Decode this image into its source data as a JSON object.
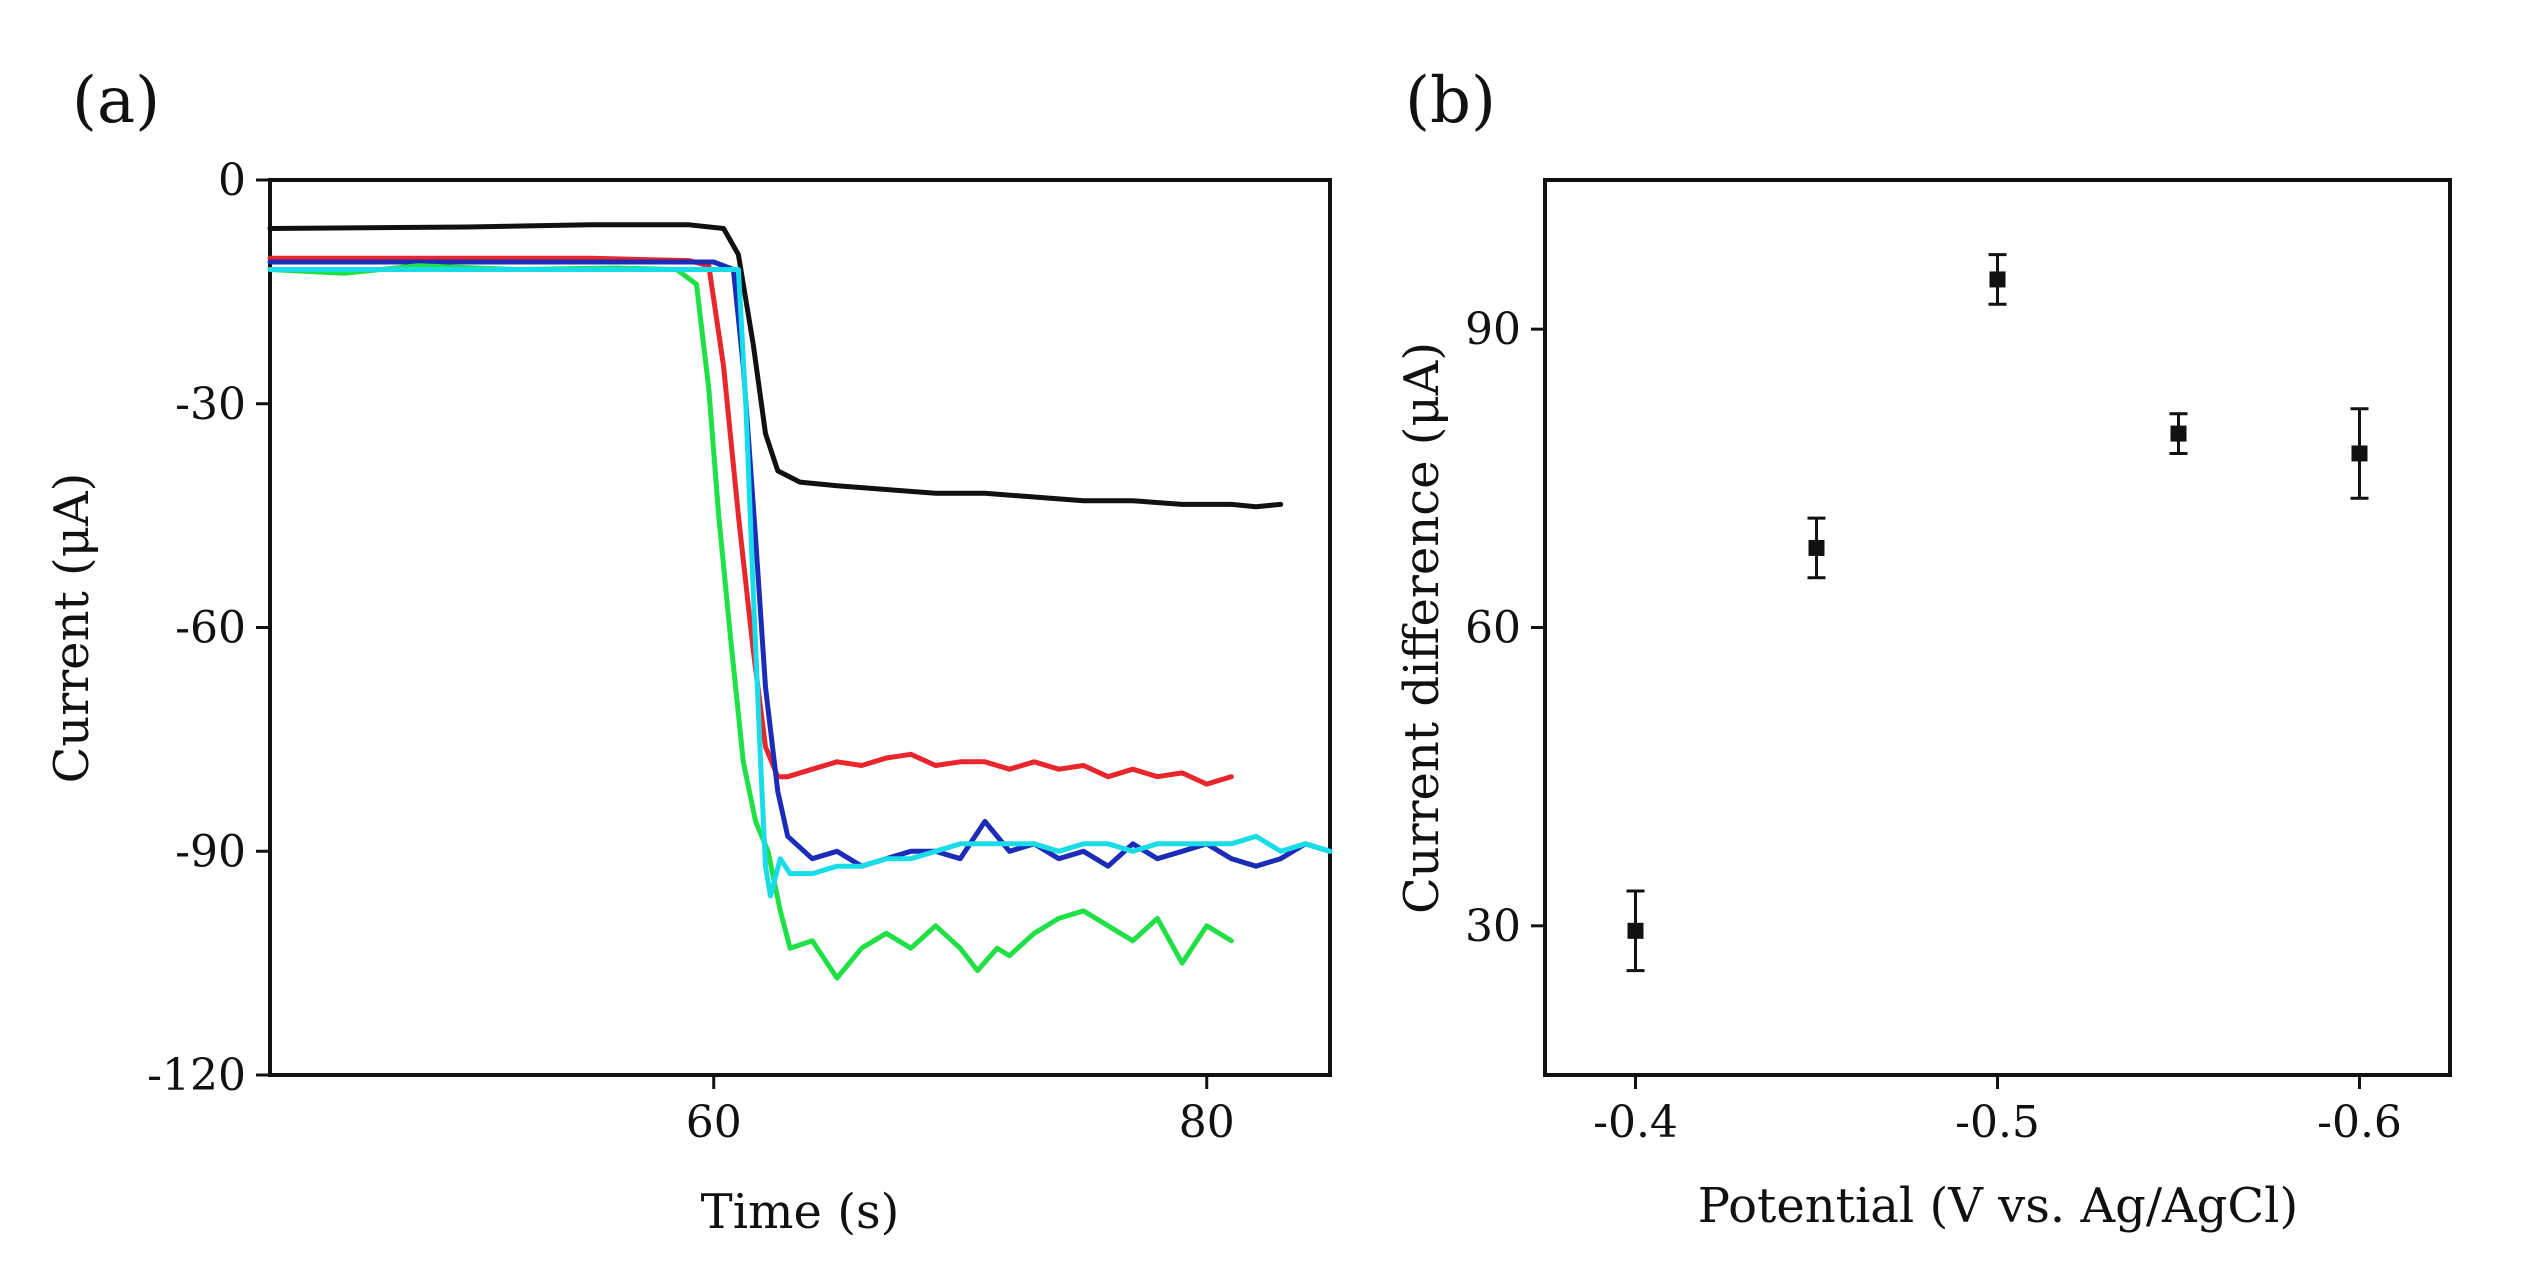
{
  "figure": {
    "panels": [
      "(a)",
      "(b)"
    ]
  },
  "chart_data": [
    {
      "panel": "(a)",
      "type": "line",
      "title": "",
      "xlabel": "Time (s)",
      "ylabel": "Current (μA)",
      "xlim": [
        42,
        85
      ],
      "ylim": [
        -120,
        0
      ],
      "xticks": [
        60,
        80
      ],
      "yticks": [
        0,
        -30,
        -60,
        -90,
        -120
      ],
      "grid": false,
      "series": [
        {
          "name": "black",
          "color": "#111111",
          "points": [
            [
              42,
              -6.5
            ],
            [
              50,
              -6.3
            ],
            [
              55,
              -6.0
            ],
            [
              59,
              -6.0
            ],
            [
              60.4,
              -6.5
            ],
            [
              61,
              -10
            ],
            [
              61.6,
              -22
            ],
            [
              62.1,
              -34
            ],
            [
              62.6,
              -39
            ],
            [
              63.5,
              -40.5
            ],
            [
              65,
              -41
            ],
            [
              67,
              -41.5
            ],
            [
              69,
              -42
            ],
            [
              71,
              -42
            ],
            [
              73,
              -42.5
            ],
            [
              75,
              -43
            ],
            [
              77,
              -43
            ],
            [
              79,
              -43.5
            ],
            [
              81,
              -43.5
            ],
            [
              82,
              -43.8
            ],
            [
              83,
              -43.5
            ]
          ]
        },
        {
          "name": "red",
          "color": "#e8262c",
          "points": [
            [
              42,
              -10.5
            ],
            [
              50,
              -10.5
            ],
            [
              55,
              -10.5
            ],
            [
              59,
              -10.8
            ],
            [
              59.8,
              -11.5
            ],
            [
              60.4,
              -25
            ],
            [
              61.0,
              -45
            ],
            [
              61.6,
              -63
            ],
            [
              62.1,
              -76
            ],
            [
              62.6,
              -80
            ],
            [
              63.0,
              -80
            ],
            [
              64,
              -79
            ],
            [
              65,
              -78
            ],
            [
              66,
              -78.5
            ],
            [
              67,
              -77.5
            ],
            [
              68,
              -77
            ],
            [
              69,
              -78.5
            ],
            [
              70,
              -78
            ],
            [
              71,
              -78
            ],
            [
              72,
              -79
            ],
            [
              73,
              -78
            ],
            [
              74,
              -79
            ],
            [
              75,
              -78.5
            ],
            [
              76,
              -80
            ],
            [
              77,
              -79
            ],
            [
              78,
              -80
            ],
            [
              79,
              -79.5
            ],
            [
              80,
              -81
            ],
            [
              81,
              -80
            ]
          ]
        },
        {
          "name": "blue",
          "color": "#1c2bb8",
          "points": [
            [
              42,
              -11
            ],
            [
              50,
              -11
            ],
            [
              55,
              -11
            ],
            [
              60,
              -11
            ],
            [
              60.8,
              -12
            ],
            [
              61.2,
              -25
            ],
            [
              61.7,
              -48
            ],
            [
              62.1,
              -68
            ],
            [
              62.6,
              -82
            ],
            [
              63.0,
              -88
            ],
            [
              64,
              -91
            ],
            [
              65,
              -90
            ],
            [
              66,
              -92
            ],
            [
              67,
              -91
            ],
            [
              68,
              -90
            ],
            [
              69,
              -90
            ],
            [
              70,
              -91
            ],
            [
              71,
              -86
            ],
            [
              72,
              -90
            ],
            [
              73,
              -89
            ],
            [
              74,
              -91
            ],
            [
              75,
              -90
            ],
            [
              76,
              -92
            ],
            [
              77,
              -89
            ],
            [
              78,
              -91
            ],
            [
              79,
              -90
            ],
            [
              80,
              -89
            ],
            [
              81,
              -91
            ],
            [
              82,
              -92
            ],
            [
              83,
              -91
            ],
            [
              84,
              -89
            ],
            [
              85,
              -90
            ]
          ]
        },
        {
          "name": "green",
          "color": "#1fe045",
          "points": [
            [
              42,
              -12
            ],
            [
              45,
              -12.5
            ],
            [
              48,
              -11.5
            ],
            [
              52,
              -12
            ],
            [
              56,
              -11.8
            ],
            [
              58.5,
              -12
            ],
            [
              59.3,
              -14
            ],
            [
              59.8,
              -28
            ],
            [
              60.2,
              -45
            ],
            [
              60.7,
              -62
            ],
            [
              61.2,
              -78
            ],
            [
              61.7,
              -86
            ],
            [
              62.2,
              -90
            ],
            [
              62.7,
              -98
            ],
            [
              63.1,
              -103
            ],
            [
              64,
              -102
            ],
            [
              65,
              -107
            ],
            [
              66,
              -103
            ],
            [
              67,
              -101
            ],
            [
              68,
              -103
            ],
            [
              69,
              -100
            ],
            [
              70,
              -103
            ],
            [
              70.7,
              -106
            ],
            [
              71.5,
              -103
            ],
            [
              72,
              -104
            ],
            [
              73,
              -101
            ],
            [
              74,
              -99
            ],
            [
              75,
              -98
            ],
            [
              76,
              -100
            ],
            [
              77,
              -102
            ],
            [
              78,
              -99
            ],
            [
              79,
              -105
            ],
            [
              80,
              -100
            ],
            [
              81,
              -102
            ]
          ]
        },
        {
          "name": "cyan",
          "color": "#18dde8",
          "points": [
            [
              42,
              -12
            ],
            [
              50,
              -12
            ],
            [
              55,
              -12
            ],
            [
              60,
              -12
            ],
            [
              61,
              -12
            ],
            [
              61.3,
              -30
            ],
            [
              61.6,
              -55
            ],
            [
              61.9,
              -78
            ],
            [
              62.1,
              -92
            ],
            [
              62.3,
              -96
            ],
            [
              62.7,
              -91
            ],
            [
              63.1,
              -93
            ],
            [
              64,
              -93
            ],
            [
              65,
              -92
            ],
            [
              66,
              -92
            ],
            [
              67,
              -91
            ],
            [
              68,
              -91
            ],
            [
              69,
              -90
            ],
            [
              70,
              -89
            ],
            [
              71,
              -89
            ],
            [
              72,
              -89
            ],
            [
              73,
              -89
            ],
            [
              74,
              -90
            ],
            [
              75,
              -89
            ],
            [
              76,
              -89
            ],
            [
              77,
              -90
            ],
            [
              78,
              -89
            ],
            [
              79,
              -89
            ],
            [
              80,
              -89
            ],
            [
              81,
              -89
            ],
            [
              82,
              -88
            ],
            [
              83,
              -90
            ],
            [
              84,
              -89
            ],
            [
              85,
              -90
            ]
          ]
        }
      ]
    },
    {
      "panel": "(b)",
      "type": "scatter",
      "title": "",
      "xlabel": "Potential (V vs. Ag/AgCl)",
      "ylabel": "Current difference (μA)",
      "xlim": [
        -0.375,
        -0.625
      ],
      "ylim": [
        15,
        105
      ],
      "xticks": [
        -0.4,
        -0.5,
        -0.6
      ],
      "xtick_labels": [
        "-0.4",
        "-0.5",
        "-0.6"
      ],
      "yticks": [
        30,
        60,
        90
      ],
      "grid": false,
      "series": [
        {
          "name": "Current difference",
          "x": [
            -0.4,
            -0.45,
            -0.5,
            -0.55,
            -0.6
          ],
          "y": [
            29.5,
            68,
            95,
            79.5,
            77.5
          ],
          "error": [
            4,
            3,
            2.5,
            2,
            4.5
          ]
        }
      ]
    }
  ]
}
